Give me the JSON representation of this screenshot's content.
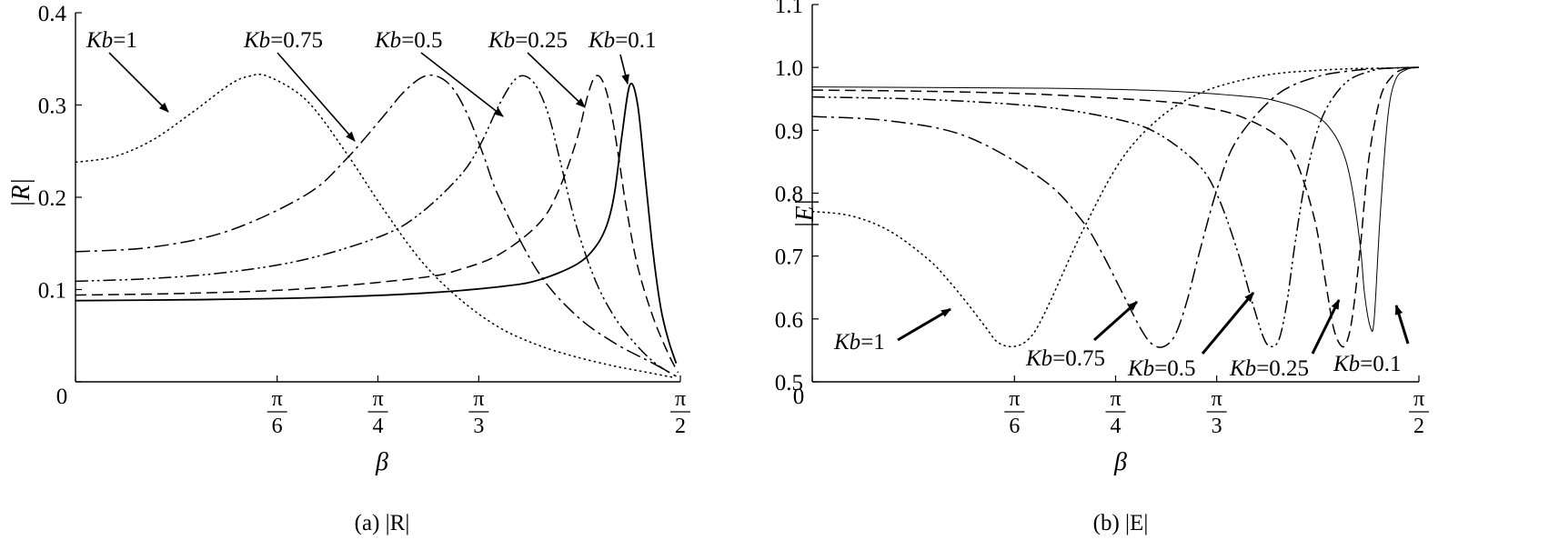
{
  "chart_data": [
    {
      "type": "line",
      "caption": "(a) |R|",
      "xlabel": "β",
      "ylabel": "|R|",
      "xlim": [
        0,
        1.5708
      ],
      "ylim": [
        0,
        0.4
      ],
      "x_ticks": [
        {
          "value": 0,
          "label": "0"
        },
        {
          "value": 0.5236,
          "num": "π",
          "den": "6"
        },
        {
          "value": 0.7854,
          "num": "π",
          "den": "4"
        },
        {
          "value": 1.0472,
          "num": "π",
          "den": "3"
        },
        {
          "value": 1.5708,
          "num": "π",
          "den": "2"
        }
      ],
      "y_ticks": [
        {
          "value": 0,
          "label": ""
        },
        {
          "value": 0.1,
          "label": "0.1"
        },
        {
          "value": 0.2,
          "label": "0.2"
        },
        {
          "value": 0.3,
          "label": "0.3"
        },
        {
          "value": 0.4,
          "label": "0.4"
        }
      ],
      "series": [
        {
          "name": "Kb=1",
          "style": "dotted",
          "x": [
            0,
            0.1,
            0.2,
            0.3,
            0.4,
            0.45,
            0.5,
            0.6,
            0.7,
            0.8,
            0.9,
            1.0,
            1.1,
            1.2,
            1.3,
            1.4,
            1.45,
            1.5,
            1.55
          ],
          "y": [
            0.238,
            0.244,
            0.262,
            0.291,
            0.322,
            0.331,
            0.331,
            0.305,
            0.25,
            0.187,
            0.13,
            0.089,
            0.059,
            0.04,
            0.027,
            0.017,
            0.013,
            0.009,
            0.005
          ]
        },
        {
          "name": "Kb=0.75",
          "style": "dashdot",
          "x": [
            0,
            0.2,
            0.4,
            0.6,
            0.7,
            0.8,
            0.85,
            0.9,
            0.94,
            0.98,
            1.02,
            1.06,
            1.1,
            1.2,
            1.3,
            1.4,
            1.5,
            1.56
          ],
          "y": [
            0.141,
            0.146,
            0.164,
            0.203,
            0.24,
            0.288,
            0.313,
            0.33,
            0.331,
            0.318,
            0.288,
            0.245,
            0.2,
            0.12,
            0.072,
            0.042,
            0.02,
            0.006
          ]
        },
        {
          "name": "Kb=0.5",
          "style": "dashdotdot",
          "x": [
            0,
            0.2,
            0.4,
            0.6,
            0.8,
            0.9,
            1.0,
            1.05,
            1.1,
            1.14,
            1.17,
            1.2,
            1.23,
            1.26,
            1.3,
            1.35,
            1.4,
            1.45,
            1.5,
            1.55
          ],
          "y": [
            0.109,
            0.112,
            0.119,
            0.133,
            0.159,
            0.184,
            0.224,
            0.256,
            0.3,
            0.327,
            0.331,
            0.318,
            0.287,
            0.237,
            0.17,
            0.11,
            0.07,
            0.043,
            0.022,
            0.008
          ]
        },
        {
          "name": "Kb=0.25",
          "style": "dashed",
          "x": [
            0,
            0.3,
            0.6,
            0.9,
            1.0,
            1.1,
            1.2,
            1.25,
            1.3,
            1.33,
            1.35,
            1.37,
            1.39,
            1.41,
            1.43,
            1.46,
            1.5,
            1.54,
            1.565
          ],
          "y": [
            0.094,
            0.096,
            0.101,
            0.113,
            0.122,
            0.138,
            0.17,
            0.203,
            0.26,
            0.31,
            0.331,
            0.325,
            0.295,
            0.245,
            0.19,
            0.125,
            0.07,
            0.03,
            0.01
          ]
        },
        {
          "name": "Kb=0.1",
          "style": "solid",
          "x": [
            0,
            0.3,
            0.6,
            0.9,
            1.1,
            1.2,
            1.3,
            1.35,
            1.38,
            1.4,
            1.42,
            1.44,
            1.46,
            1.48,
            1.5,
            1.52,
            1.54,
            1.56
          ],
          "y": [
            0.088,
            0.089,
            0.091,
            0.096,
            0.103,
            0.11,
            0.127,
            0.146,
            0.17,
            0.205,
            0.27,
            0.322,
            0.3,
            0.22,
            0.14,
            0.08,
            0.045,
            0.02
          ]
        }
      ],
      "annotations": [
        {
          "prefix": "Kb",
          "value": "=1"
        },
        {
          "prefix": "Kb",
          "value": "=0.75"
        },
        {
          "prefix": "Kb",
          "value": "=0.5"
        },
        {
          "prefix": "Kb",
          "value": "=0.25"
        },
        {
          "prefix": "Kb",
          "value": "=0.1"
        }
      ]
    },
    {
      "type": "line",
      "caption": "(b) |E|",
      "xlabel": "β",
      "ylabel": "|E|",
      "xlim": [
        0,
        1.5708
      ],
      "ylim": [
        0.5,
        1.1
      ],
      "x_ticks": [
        {
          "value": 0,
          "label": "0"
        },
        {
          "value": 0.5236,
          "num": "π",
          "den": "6"
        },
        {
          "value": 0.7854,
          "num": "π",
          "den": "4"
        },
        {
          "value": 1.0472,
          "num": "π",
          "den": "3"
        },
        {
          "value": 1.5708,
          "num": "π",
          "den": "2"
        }
      ],
      "y_ticks": [
        {
          "value": 0.5,
          "label": "0.5"
        },
        {
          "value": 0.6,
          "label": "0.6"
        },
        {
          "value": 0.7,
          "label": "0.7"
        },
        {
          "value": 0.8,
          "label": "0.8"
        },
        {
          "value": 0.9,
          "label": "0.9"
        },
        {
          "value": 1.0,
          "label": "1.0"
        },
        {
          "value": 1.1,
          "label": "1.1"
        }
      ],
      "series": [
        {
          "name": "Kb=1",
          "style": "dotted",
          "x": [
            0,
            0.1,
            0.2,
            0.3,
            0.35,
            0.4,
            0.45,
            0.48,
            0.52,
            0.56,
            0.6,
            0.7,
            0.8,
            0.9,
            1.0,
            1.1,
            1.2,
            1.3,
            1.4,
            1.5,
            1.55,
            1.57
          ],
          "y": [
            0.771,
            0.764,
            0.74,
            0.695,
            0.663,
            0.626,
            0.586,
            0.563,
            0.556,
            0.568,
            0.607,
            0.74,
            0.853,
            0.92,
            0.958,
            0.978,
            0.99,
            0.995,
            0.998,
            0.999,
            1.0,
            1.0
          ]
        },
        {
          "name": "Kb=0.75",
          "style": "dashdot",
          "x": [
            0,
            0.2,
            0.4,
            0.6,
            0.7,
            0.75,
            0.8,
            0.85,
            0.88,
            0.91,
            0.94,
            0.97,
            1.0,
            1.05,
            1.1,
            1.2,
            1.3,
            1.4,
            1.5,
            1.57
          ],
          "y": [
            0.922,
            0.915,
            0.89,
            0.82,
            0.755,
            0.705,
            0.645,
            0.585,
            0.56,
            0.556,
            0.575,
            0.628,
            0.7,
            0.81,
            0.885,
            0.955,
            0.984,
            0.995,
            0.999,
            1.0
          ]
        },
        {
          "name": "Kb=0.5",
          "style": "dashdotdot",
          "x": [
            0,
            0.3,
            0.6,
            0.8,
            0.9,
            1.0,
            1.05,
            1.1,
            1.14,
            1.17,
            1.19,
            1.21,
            1.23,
            1.25,
            1.28,
            1.32,
            1.38,
            1.45,
            1.5,
            1.57
          ],
          "y": [
            0.953,
            0.949,
            0.937,
            0.916,
            0.893,
            0.845,
            0.795,
            0.71,
            0.625,
            0.568,
            0.556,
            0.57,
            0.63,
            0.72,
            0.83,
            0.92,
            0.975,
            0.995,
            0.999,
            1.0
          ]
        },
        {
          "name": "Kb=0.25",
          "style": "dashed",
          "x": [
            0,
            0.3,
            0.6,
            0.9,
            1.0,
            1.1,
            1.2,
            1.25,
            1.3,
            1.33,
            1.35,
            1.37,
            1.385,
            1.4,
            1.42,
            1.44,
            1.47,
            1.5,
            1.53,
            1.57
          ],
          "y": [
            0.964,
            0.962,
            0.957,
            0.946,
            0.938,
            0.924,
            0.893,
            0.855,
            0.76,
            0.655,
            0.585,
            0.557,
            0.565,
            0.61,
            0.72,
            0.85,
            0.95,
            0.985,
            0.997,
            1.0
          ]
        },
        {
          "name": "Kb=0.1",
          "style": "solid-thin",
          "x": [
            0,
            0.3,
            0.6,
            0.9,
            1.1,
            1.2,
            1.3,
            1.35,
            1.38,
            1.4,
            1.42,
            1.43,
            1.445,
            1.455,
            1.47,
            1.49,
            1.51,
            1.54,
            1.57
          ],
          "y": [
            0.969,
            0.968,
            0.967,
            0.963,
            0.955,
            0.947,
            0.925,
            0.895,
            0.855,
            0.8,
            0.71,
            0.64,
            0.587,
            0.6,
            0.76,
            0.92,
            0.98,
            0.997,
            1.0
          ]
        }
      ],
      "annotations": [
        {
          "prefix": "Kb",
          "value": "=1"
        },
        {
          "prefix": "Kb",
          "value": "=0.75"
        },
        {
          "prefix": "Kb",
          "value": "=0.5"
        },
        {
          "prefix": "Kb",
          "value": "=0.25"
        },
        {
          "prefix": "Kb",
          "value": "=0.1"
        }
      ]
    }
  ]
}
